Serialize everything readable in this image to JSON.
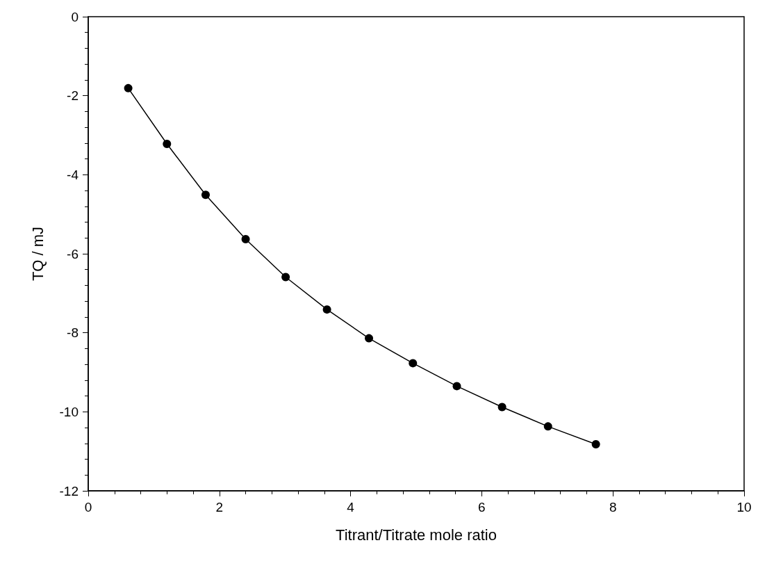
{
  "chart_data": {
    "type": "line",
    "xlabel": "Titrant/Titrate mole ratio",
    "ylabel": "TQ / mJ",
    "x": [
      0.61,
      1.2,
      1.79,
      2.4,
      3.01,
      3.64,
      4.28,
      4.95,
      5.62,
      6.31,
      7.01,
      7.74
    ],
    "series": [
      {
        "color": "#000000",
        "values": [
          -1.81,
          -3.22,
          -4.51,
          -5.63,
          -6.59,
          -7.41,
          -8.14,
          -8.77,
          -9.35,
          -9.88,
          -10.37,
          -10.82
        ]
      }
    ],
    "xlim": [
      0,
      10
    ],
    "xticks": [
      0,
      2,
      4,
      6,
      8,
      10
    ],
    "ylim": [
      -12,
      0
    ],
    "yticks": [
      -12,
      -10,
      -8,
      -6,
      -4,
      -2,
      0
    ],
    "grid": false,
    "marker": "circle",
    "line_style": "solid"
  }
}
